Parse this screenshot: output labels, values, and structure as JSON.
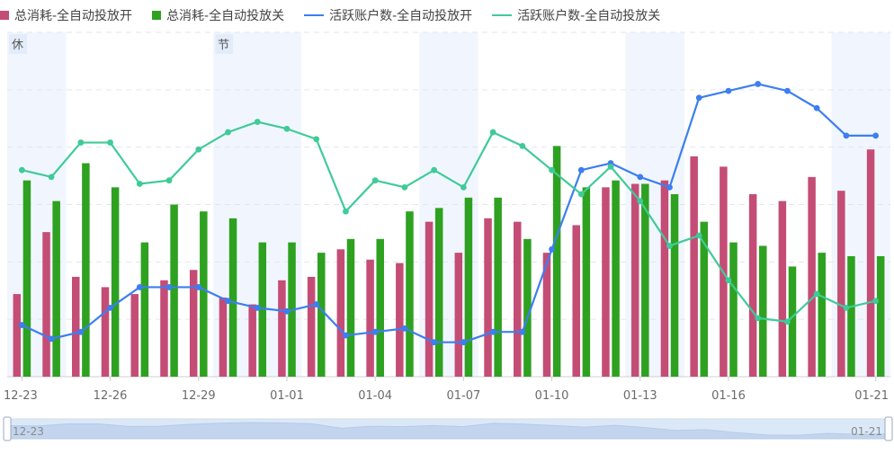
{
  "legend": [
    {
      "label": "总消耗-全自动投放开",
      "color": "#c44d76",
      "kind": "bar"
    },
    {
      "label": "总消耗-全自动投放关",
      "color": "#2ea121",
      "kind": "bar"
    },
    {
      "label": "活跃账户数-全自动投放开",
      "color": "#3d7ef0",
      "kind": "line"
    },
    {
      "label": "活跃账户数-全自动投放关",
      "color": "#3fcb98",
      "kind": "line"
    }
  ],
  "holiday_labels": {
    "first": "休",
    "second": "节"
  },
  "slider": {
    "start_label": "12-23",
    "end_label": "01-21"
  },
  "chart_data": {
    "type": "bar",
    "x_tick_labels": [
      "12-23",
      "12-26",
      "12-29",
      "01-01",
      "01-04",
      "01-07",
      "01-10",
      "01-13",
      "01-16",
      "01-21"
    ],
    "categories": [
      "12-23",
      "12-24",
      "12-25",
      "12-26",
      "12-27",
      "12-28",
      "12-29",
      "12-30",
      "12-31",
      "01-01",
      "01-02",
      "01-03",
      "01-04",
      "01-05",
      "01-06",
      "01-07",
      "01-08",
      "01-09",
      "01-10",
      "01-11",
      "01-12",
      "01-13",
      "01-14",
      "01-15",
      "01-16",
      "01-17",
      "01-18",
      "01-19",
      "01-20",
      "01-21"
    ],
    "ylim": [
      0,
      100
    ],
    "grid": true,
    "legend_position": "top-left",
    "shaded_periods": [
      [
        "12-23",
        "12-24"
      ],
      [
        "12-30",
        "01-01"
      ],
      [
        "01-06",
        "01-07"
      ],
      [
        "01-13",
        "01-14"
      ],
      [
        "01-20",
        "01-21"
      ]
    ],
    "series": [
      {
        "name": "总消耗-全自动投放开",
        "type": "bar",
        "values": [
          24,
          42,
          29,
          26,
          24,
          28,
          31,
          23,
          21,
          28,
          29,
          37,
          34,
          33,
          45,
          36,
          46,
          45,
          36,
          44,
          55,
          56,
          57,
          64,
          61,
          53,
          51,
          58,
          54,
          66
        ]
      },
      {
        "name": "总消耗-全自动投放关",
        "type": "bar",
        "values": [
          57,
          51,
          62,
          55,
          39,
          50,
          48,
          46,
          39,
          39,
          36,
          40,
          40,
          48,
          49,
          52,
          52,
          40,
          67,
          55,
          57,
          56,
          53,
          45,
          39,
          38,
          32,
          36,
          35,
          35
        ]
      },
      {
        "name": "活跃账户数-全自动投放开",
        "type": "line",
        "values": [
          15,
          11,
          13,
          20,
          26,
          26,
          26,
          22,
          20,
          19,
          21,
          12,
          13,
          14,
          10,
          10,
          13,
          13,
          37,
          60,
          62,
          58,
          55,
          81,
          83,
          85,
          83,
          78,
          70,
          70
        ]
      },
      {
        "name": "活跃账户数-全自动投放关",
        "type": "line",
        "values": [
          60,
          58,
          68,
          68,
          56,
          57,
          66,
          71,
          74,
          72,
          69,
          48,
          57,
          55,
          60,
          55,
          71,
          67,
          60,
          53,
          61,
          51,
          38,
          41,
          28,
          17,
          16,
          24,
          20,
          22
        ]
      }
    ]
  }
}
